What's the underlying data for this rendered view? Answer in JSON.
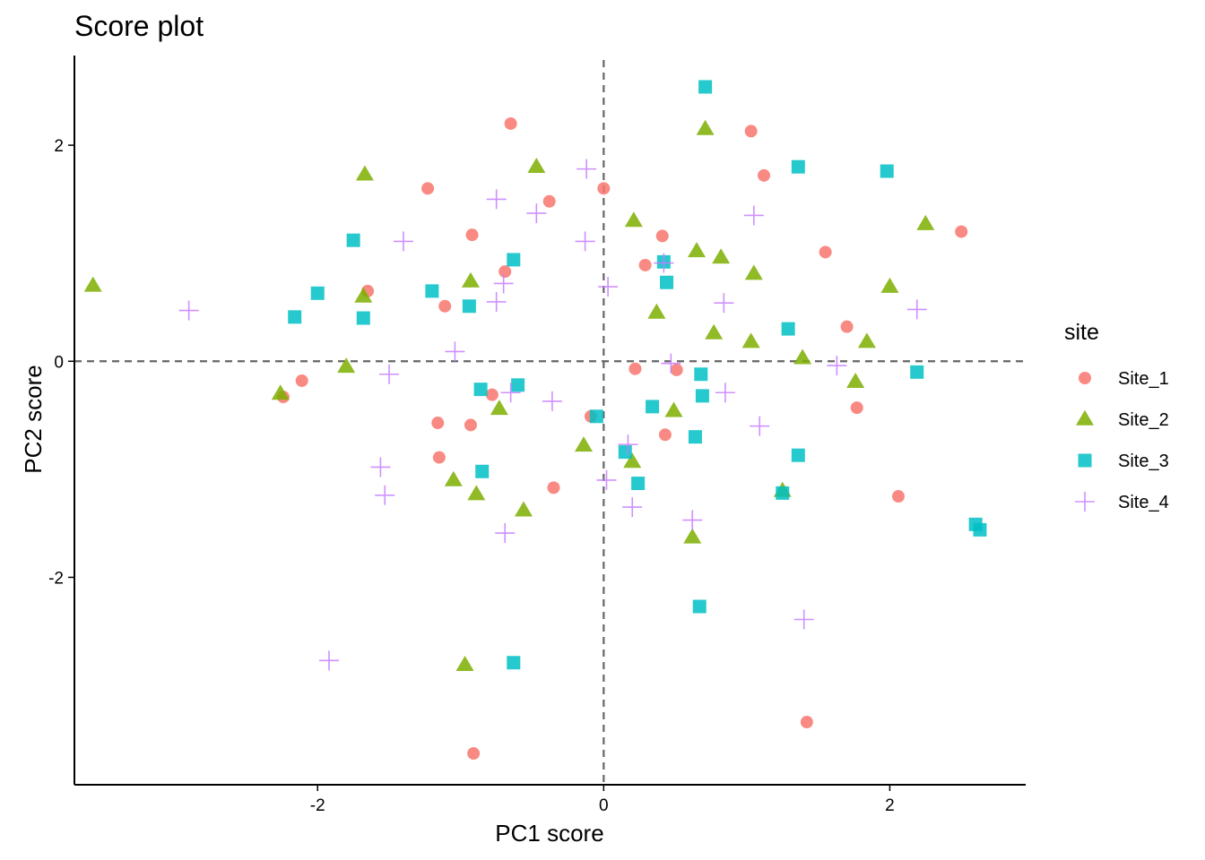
{
  "chart_data": {
    "type": "scatter",
    "title": "Score plot",
    "xlabel": "PC1 score",
    "ylabel": "PC2 score",
    "xlim": [
      -3.7,
      2.95
    ],
    "ylim": [
      -3.92,
      2.83
    ],
    "xticks": [
      -2,
      0,
      2
    ],
    "yticks": [
      -2,
      0,
      2
    ],
    "tick_labels": {
      "x": [
        "-2",
        "0",
        "2"
      ],
      "y": [
        "-2",
        "0",
        "2"
      ]
    },
    "reference_lines": {
      "x": 0,
      "y": 0,
      "style": "dashed"
    },
    "grid": false,
    "legend": {
      "title": "site",
      "position": "right"
    },
    "series": [
      {
        "name": "Site_1",
        "color": "#F8766D",
        "marker": "circle",
        "points": [
          [
            -0.65,
            2.2
          ],
          [
            -1.23,
            1.6
          ],
          [
            -0.38,
            1.48
          ],
          [
            -0.92,
            1.17
          ],
          [
            -0.69,
            0.83
          ],
          [
            -1.65,
            0.65
          ],
          [
            -1.11,
            0.51
          ],
          [
            -2.11,
            -0.18
          ],
          [
            -2.24,
            -0.33
          ],
          [
            -0.78,
            -0.31
          ],
          [
            -1.16,
            -0.57
          ],
          [
            -0.93,
            -0.59
          ],
          [
            -1.15,
            -0.89
          ],
          [
            -0.35,
            -1.17
          ],
          [
            -0.09,
            -0.51
          ],
          [
            -0.91,
            -3.63
          ],
          [
            0.0,
            1.6
          ],
          [
            1.03,
            2.13
          ],
          [
            1.12,
            1.72
          ],
          [
            0.41,
            1.16
          ],
          [
            0.29,
            0.89
          ],
          [
            0.22,
            -0.07
          ],
          [
            0.51,
            -0.08
          ],
          [
            0.43,
            -0.68
          ],
          [
            1.55,
            1.01
          ],
          [
            1.7,
            0.32
          ],
          [
            1.77,
            -0.43
          ],
          [
            2.06,
            -1.25
          ],
          [
            2.5,
            1.2
          ],
          [
            1.42,
            -3.34
          ]
        ]
      },
      {
        "name": "Site_2",
        "color": "#7CAE00",
        "marker": "triangle",
        "points": [
          [
            -3.57,
            0.7
          ],
          [
            -1.67,
            1.73
          ],
          [
            -0.47,
            1.8
          ],
          [
            -1.68,
            0.6
          ],
          [
            -0.93,
            0.74
          ],
          [
            -1.8,
            -0.05
          ],
          [
            -2.26,
            -0.3
          ],
          [
            -0.73,
            -0.44
          ],
          [
            -1.05,
            -1.1
          ],
          [
            -0.89,
            -1.23
          ],
          [
            -0.56,
            -1.38
          ],
          [
            -0.97,
            -2.81
          ],
          [
            -0.14,
            -0.78
          ],
          [
            0.71,
            2.15
          ],
          [
            0.21,
            1.3
          ],
          [
            0.65,
            1.02
          ],
          [
            0.82,
            0.96
          ],
          [
            1.05,
            0.81
          ],
          [
            0.37,
            0.45
          ],
          [
            0.77,
            0.26
          ],
          [
            1.03,
            0.18
          ],
          [
            1.39,
            0.03
          ],
          [
            2.0,
            0.69
          ],
          [
            2.25,
            1.27
          ],
          [
            1.84,
            0.18
          ],
          [
            1.76,
            -0.19
          ],
          [
            0.49,
            -0.46
          ],
          [
            0.2,
            -0.93
          ],
          [
            0.62,
            -1.63
          ],
          [
            1.25,
            -1.2
          ]
        ]
      },
      {
        "name": "Site_3",
        "color": "#00BFC4",
        "marker": "square",
        "points": [
          [
            -1.75,
            1.12
          ],
          [
            -2.0,
            0.63
          ],
          [
            -2.16,
            0.41
          ],
          [
            -1.68,
            0.4
          ],
          [
            -1.2,
            0.65
          ],
          [
            -0.94,
            0.51
          ],
          [
            -0.63,
            0.94
          ],
          [
            -0.86,
            -0.26
          ],
          [
            -0.6,
            -0.22
          ],
          [
            -0.85,
            -1.02
          ],
          [
            -0.63,
            -2.79
          ],
          [
            -0.05,
            -0.51
          ],
          [
            0.71,
            2.54
          ],
          [
            1.36,
            1.8
          ],
          [
            1.98,
            1.76
          ],
          [
            0.42,
            0.92
          ],
          [
            0.44,
            0.73
          ],
          [
            1.29,
            0.3
          ],
          [
            0.68,
            -0.12
          ],
          [
            0.69,
            -0.32
          ],
          [
            0.34,
            -0.42
          ],
          [
            0.15,
            -0.84
          ],
          [
            0.24,
            -1.13
          ],
          [
            0.64,
            -0.7
          ],
          [
            1.36,
            -0.87
          ],
          [
            1.25,
            -1.22
          ],
          [
            2.19,
            -0.1
          ],
          [
            2.6,
            -1.51
          ],
          [
            2.63,
            -1.56
          ],
          [
            0.67,
            -2.27
          ]
        ]
      },
      {
        "name": "Site_4",
        "color": "#C77CFF",
        "marker": "cross",
        "points": [
          [
            -2.9,
            0.47
          ],
          [
            -1.4,
            1.11
          ],
          [
            -0.75,
            1.5
          ],
          [
            -0.47,
            1.37
          ],
          [
            -0.12,
            1.78
          ],
          [
            -0.13,
            1.11
          ],
          [
            -0.7,
            0.72
          ],
          [
            -0.75,
            0.55
          ],
          [
            -1.04,
            0.09
          ],
          [
            -1.5,
            -0.12
          ],
          [
            -0.65,
            -0.29
          ],
          [
            -0.36,
            -0.37
          ],
          [
            -1.56,
            -0.98
          ],
          [
            -1.53,
            -1.24
          ],
          [
            -0.69,
            -1.59
          ],
          [
            -1.92,
            -2.77
          ],
          [
            0.03,
            0.69
          ],
          [
            0.42,
            0.91
          ],
          [
            1.05,
            1.35
          ],
          [
            0.84,
            0.54
          ],
          [
            0.47,
            -0.02
          ],
          [
            0.85,
            -0.29
          ],
          [
            1.09,
            -0.6
          ],
          [
            1.63,
            -0.04
          ],
          [
            2.19,
            0.48
          ],
          [
            0.17,
            -0.77
          ],
          [
            0.02,
            -1.1
          ],
          [
            0.2,
            -1.35
          ],
          [
            0.62,
            -1.47
          ],
          [
            1.4,
            -2.39
          ]
        ]
      }
    ]
  }
}
